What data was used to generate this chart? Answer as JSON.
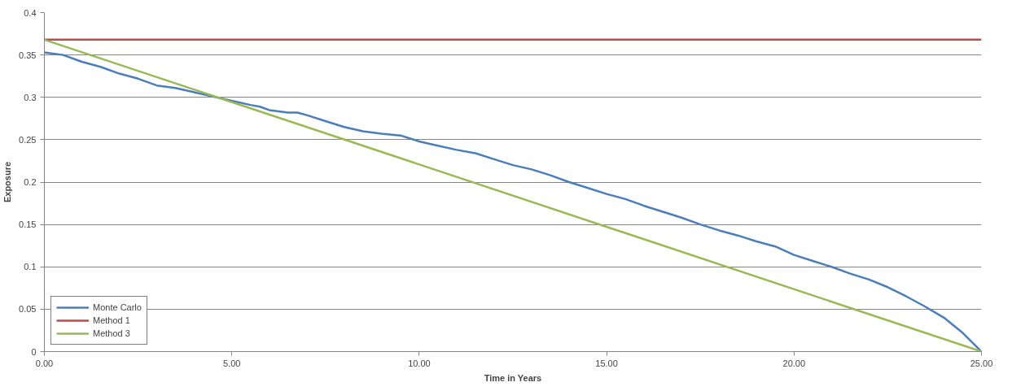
{
  "chart_data": {
    "type": "line",
    "xlabel": "Time in Years",
    "ylabel": "Exposure",
    "xlim": [
      0,
      25
    ],
    "ylim": [
      0,
      0.4
    ],
    "xticks": [
      {
        "value": 0,
        "label": "0.00"
      },
      {
        "value": 5,
        "label": "5.00"
      },
      {
        "value": 10,
        "label": "10.00"
      },
      {
        "value": 15,
        "label": "15.00"
      },
      {
        "value": 20,
        "label": "20.00"
      },
      {
        "value": 25,
        "label": "25.00"
      }
    ],
    "yticks": [
      0,
      0.05,
      0.1,
      0.15,
      0.2,
      0.25,
      0.3,
      0.35,
      0.4
    ],
    "grid": "y",
    "legend": "bottom left",
    "marker": "none",
    "line_style": "solid",
    "series": [
      {
        "name": "Monte Carlo",
        "color": "#4a7ebb",
        "x": [
          0,
          0.5,
          1,
          1.5,
          2,
          2.5,
          3,
          3.5,
          4,
          4.5,
          5,
          5.5,
          5.75,
          6,
          6.5,
          6.75,
          7,
          7.5,
          8,
          8.5,
          9,
          9.5,
          10,
          10.5,
          11,
          11.5,
          12,
          12.5,
          13,
          13.5,
          14,
          14.5,
          15,
          15.5,
          16,
          16.5,
          17,
          17.5,
          18,
          18.5,
          19,
          19.5,
          20,
          20.5,
          21,
          21.5,
          22,
          22.5,
          23,
          23.5,
          24,
          24.5,
          25
        ],
        "values": [
          0.353,
          0.35,
          0.342,
          0.336,
          0.328,
          0.322,
          0.314,
          0.311,
          0.306,
          0.301,
          0.296,
          0.291,
          0.289,
          0.285,
          0.282,
          0.282,
          0.279,
          0.272,
          0.265,
          0.26,
          0.257,
          0.255,
          0.248,
          0.243,
          0.238,
          0.234,
          0.227,
          0.22,
          0.215,
          0.208,
          0.2,
          0.193,
          0.186,
          0.18,
          0.172,
          0.165,
          0.158,
          0.15,
          0.143,
          0.137,
          0.13,
          0.124,
          0.114,
          0.107,
          0.1,
          0.092,
          0.085,
          0.076,
          0.065,
          0.053,
          0.04,
          0.022,
          0
        ]
      },
      {
        "name": "Method 1",
        "color": "#be4b48",
        "x": [
          0,
          25
        ],
        "values": [
          0.368,
          0.368
        ]
      },
      {
        "name": "Method 3",
        "color": "#98b954",
        "x": [
          0,
          25
        ],
        "values": [
          0.368,
          0
        ]
      }
    ]
  }
}
